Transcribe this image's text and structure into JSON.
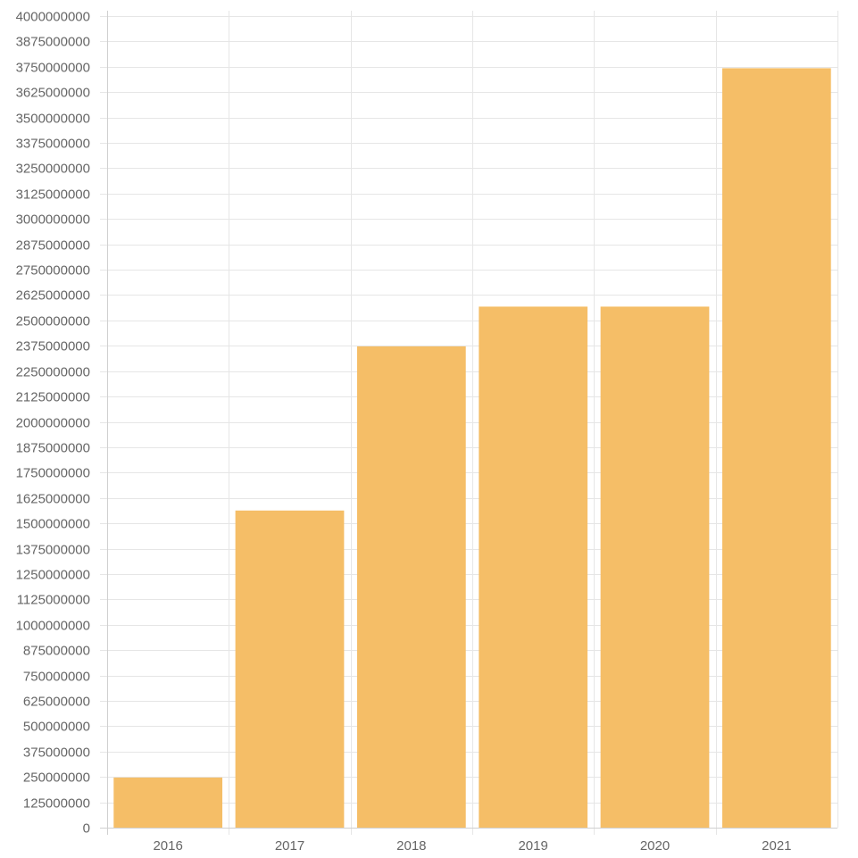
{
  "chart_data": {
    "type": "bar",
    "categories": [
      "2016",
      "2017",
      "2018",
      "2019",
      "2020",
      "2021"
    ],
    "values": [
      247000000,
      1563000000,
      2372000000,
      2568000000,
      2568000000,
      3743000000
    ],
    "ylim": [
      0,
      4000000000
    ],
    "ytick_step": 125000000,
    "yticks": [
      "0",
      "125000000",
      "250000000",
      "375000000",
      "500000000",
      "625000000",
      "750000000",
      "875000000",
      "1000000000",
      "1125000000",
      "1250000000",
      "1375000000",
      "1500000000",
      "1625000000",
      "1750000000",
      "1875000000",
      "2000000000",
      "2125000000",
      "2250000000",
      "2375000000",
      "2500000000",
      "2625000000",
      "2750000000",
      "2875000000",
      "3000000000",
      "3125000000",
      "3250000000",
      "3375000000",
      "3500000000",
      "3625000000",
      "3750000000",
      "3875000000",
      "4000000000"
    ],
    "grid": true,
    "legend": "none",
    "bar_color": "#f5be67",
    "grid_color": "#e6e6e6",
    "label_color": "#666666"
  }
}
